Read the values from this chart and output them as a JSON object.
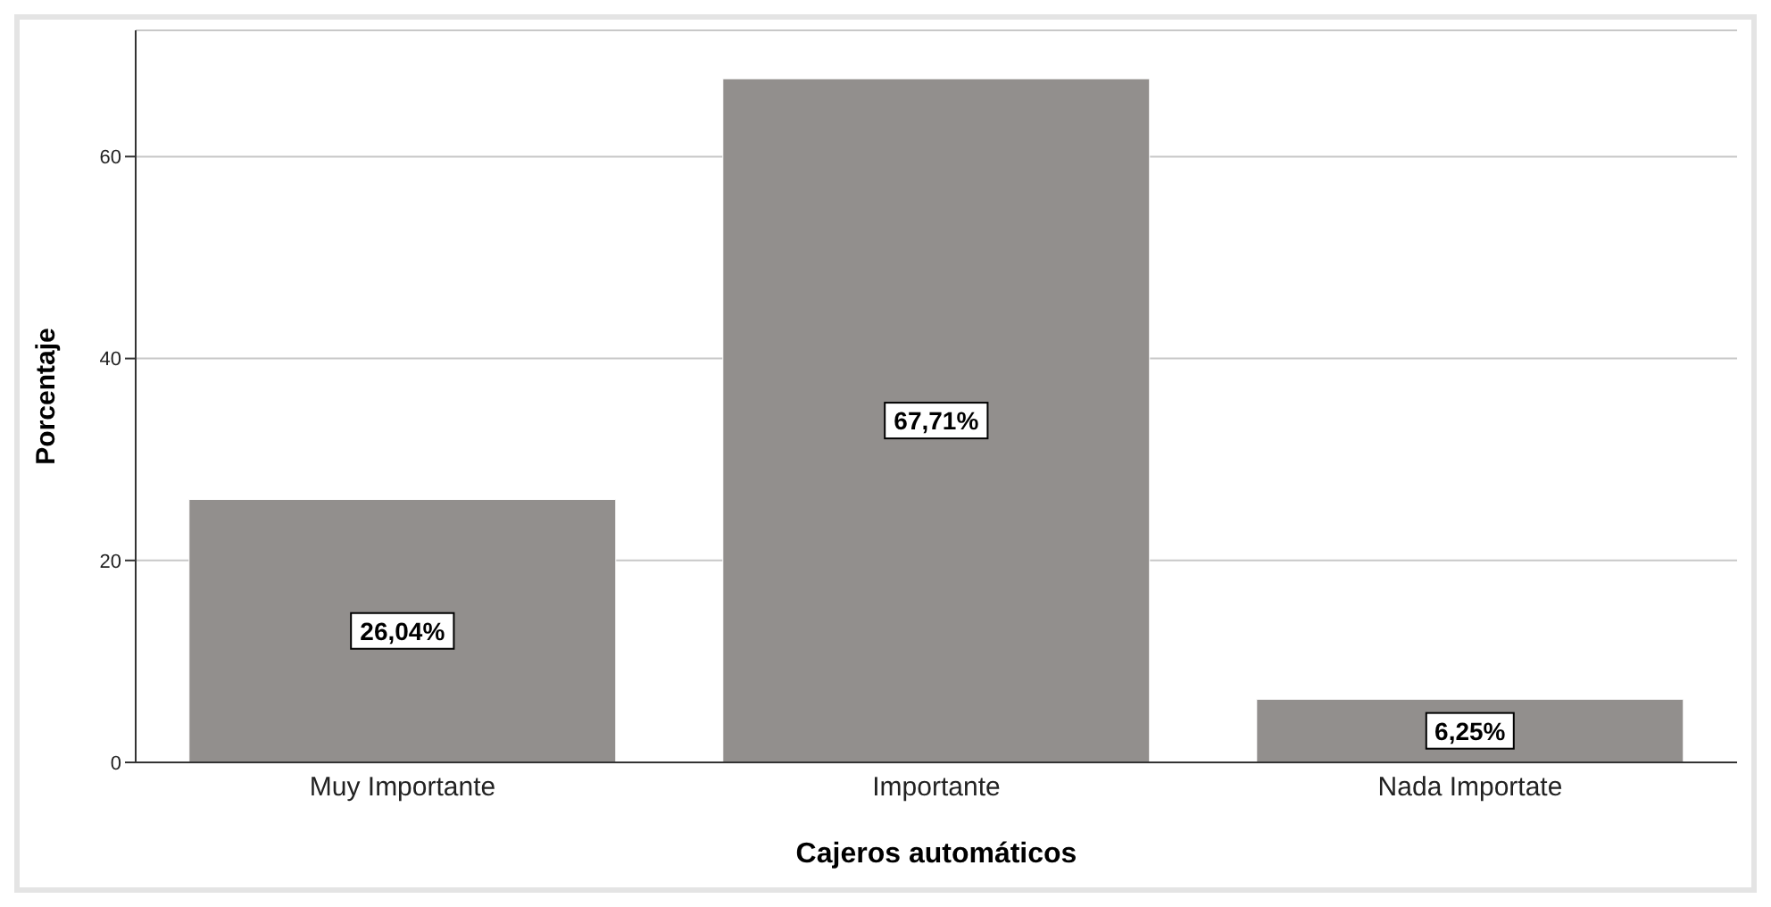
{
  "chart_data": {
    "type": "bar",
    "xlabel": "Cajeros automáticos",
    "ylabel": "Porcentaje",
    "categories": [
      "Muy Importante",
      "Importante",
      "Nada Importate"
    ],
    "values": [
      26.04,
      67.71,
      6.25
    ],
    "color": "#928f8d",
    "value_labels": [
      "26,04%",
      "67,71%",
      "6,25%"
    ],
    "ylim": [
      0,
      72.5
    ],
    "yticks": [
      0,
      20,
      40,
      60
    ],
    "grid": "y"
  }
}
